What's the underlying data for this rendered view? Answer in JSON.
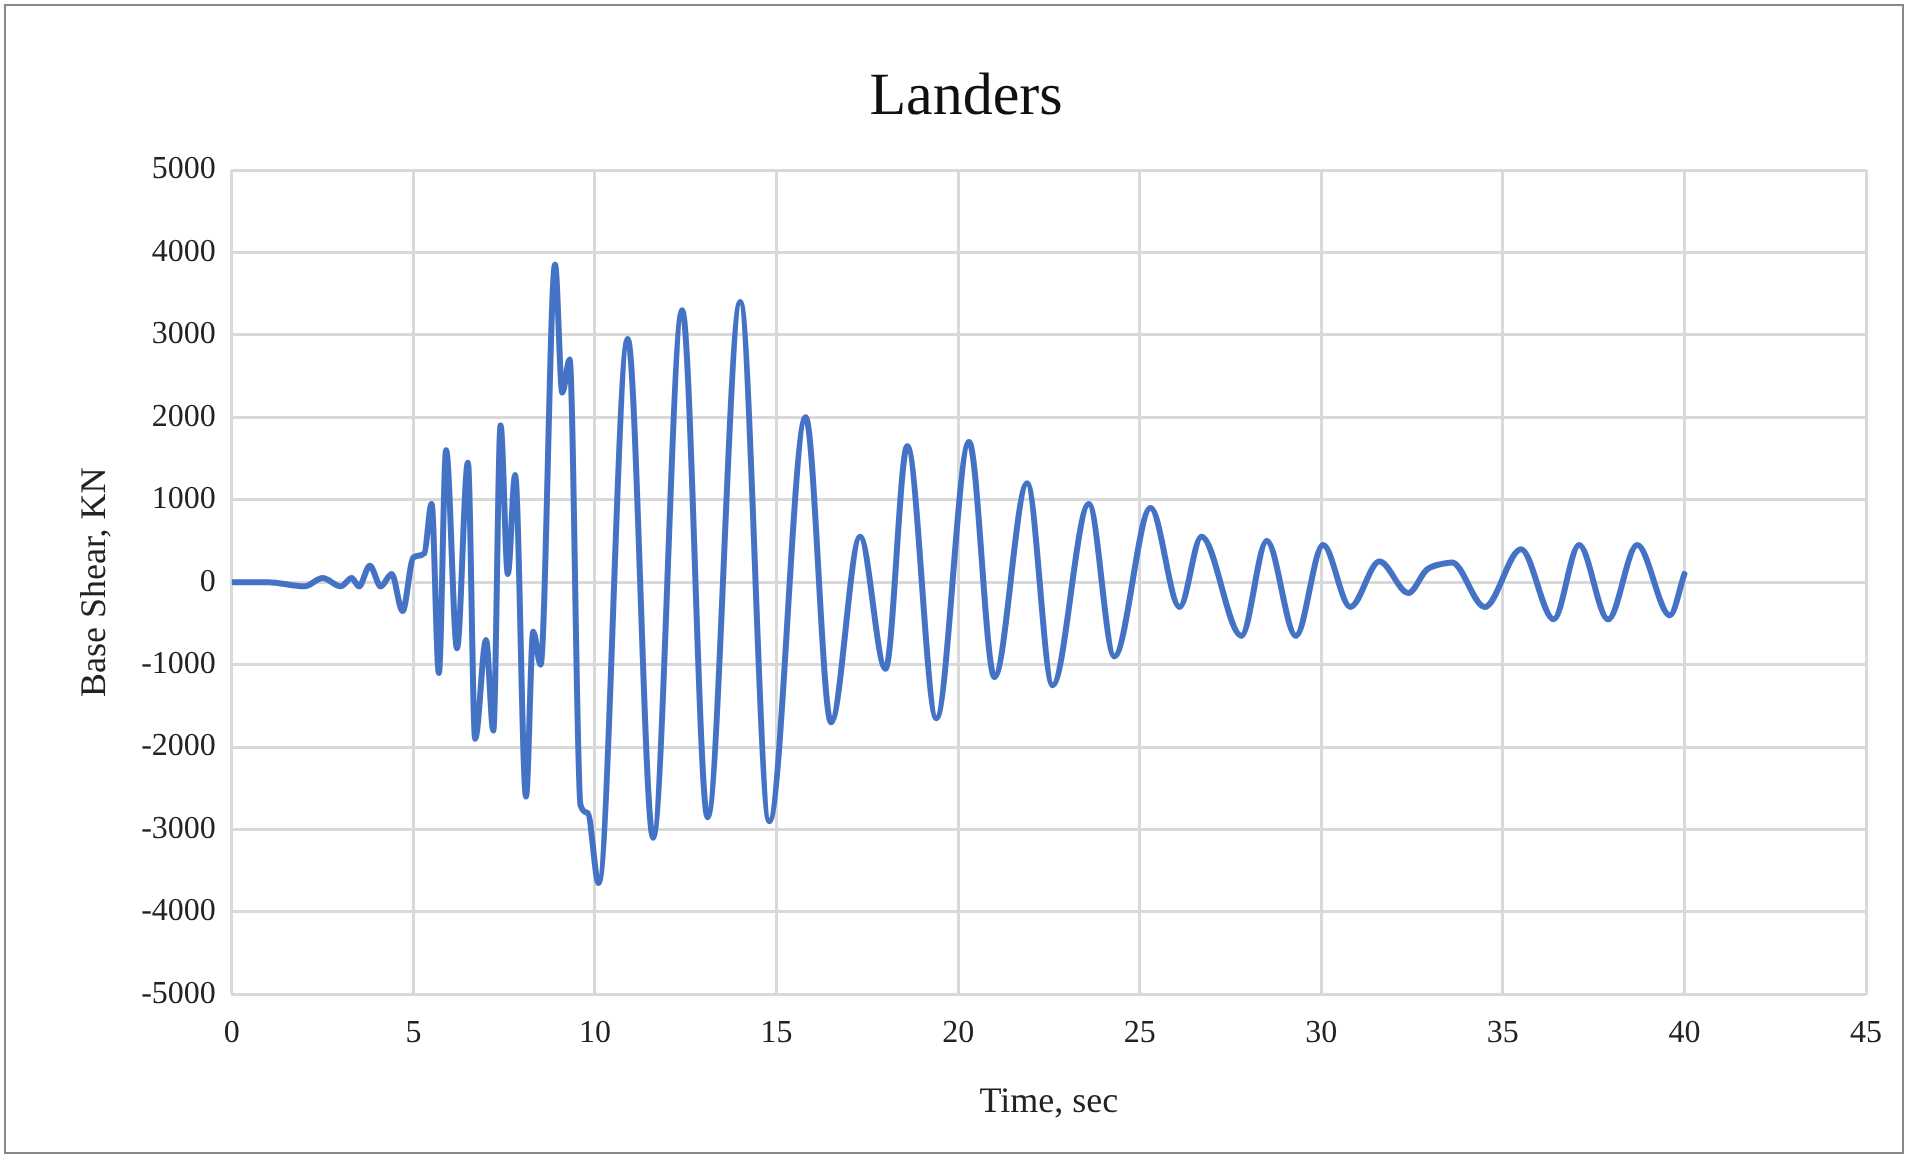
{
  "chart_data": {
    "type": "line",
    "title": "Landers",
    "xlabel": "Time, sec",
    "ylabel": "Base Shear, KN",
    "xlim": [
      0,
      45
    ],
    "xticks": [
      0,
      5,
      10,
      15,
      20,
      25,
      30,
      35,
      40,
      45
    ],
    "ylim": [
      -5000,
      5000
    ],
    "yticks": [
      -5000,
      -4000,
      -3000,
      -2000,
      -1000,
      0,
      1000,
      2000,
      3000,
      4000,
      5000
    ],
    "grid": true,
    "legend": false,
    "marker": "none",
    "line_style": "solid",
    "series": [
      {
        "color": "#4472c4",
        "x": [
          0,
          1,
          2,
          2.5,
          3,
          3.3,
          3.5,
          3.8,
          4.1,
          4.4,
          4.7,
          5.0,
          5.3,
          5.5,
          5.7,
          5.9,
          6.2,
          6.5,
          6.7,
          7.0,
          7.2,
          7.4,
          7.6,
          7.8,
          8.1,
          8.3,
          8.5,
          8.9,
          9.1,
          9.3,
          9.6,
          9.8,
          10.1,
          10.9,
          11.6,
          12.4,
          13.1,
          14.0,
          14.8,
          15.8,
          16.5,
          17.3,
          18.0,
          18.6,
          19.4,
          20.3,
          21.0,
          21.9,
          22.6,
          23.6,
          24.3,
          25.3,
          26.1,
          26.7,
          27.8,
          28.5,
          29.3,
          30.05,
          30.8,
          31.6,
          32.4,
          32.9,
          33.3,
          33.6,
          34.5,
          35.5,
          36.4,
          37.1,
          37.9,
          38.7,
          39.6,
          40
        ],
        "values": [
          0,
          0,
          -50,
          50,
          -50,
          50,
          -50,
          200,
          -50,
          100,
          -350,
          300,
          350,
          950,
          -1100,
          1600,
          -800,
          1450,
          -1900,
          -700,
          -1800,
          1900,
          100,
          1300,
          -2600,
          -600,
          -1000,
          3850,
          2300,
          2700,
          -2700,
          -2800,
          -3650,
          2950,
          -3100,
          3300,
          -2850,
          3400,
          -2900,
          2000,
          -1700,
          550,
          -1050,
          1650,
          -1650,
          1700,
          -1150,
          1200,
          -1250,
          950,
          -900,
          900,
          -300,
          550,
          -650,
          500,
          -650,
          450,
          -300,
          250,
          -130,
          150,
          220,
          240,
          -300,
          400,
          -450,
          450,
          -450,
          450,
          -400,
          100
        ]
      }
    ]
  }
}
